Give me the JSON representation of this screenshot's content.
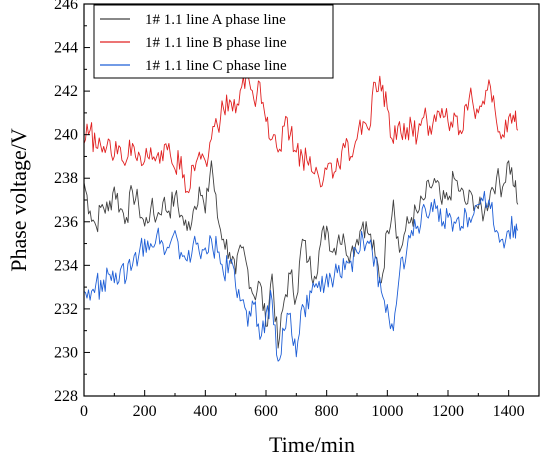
{
  "chart_data": {
    "type": "line",
    "title": "",
    "xlabel": "Time/min",
    "ylabel": "Phase voltage/V",
    "xlim": [
      0,
      1500
    ],
    "ylim": [
      228,
      246
    ],
    "xticks": [
      0,
      200,
      400,
      600,
      800,
      1000,
      1200,
      1400
    ],
    "yticks": [
      228,
      230,
      232,
      234,
      236,
      238,
      240,
      242,
      244,
      246
    ],
    "grid": false,
    "legend_position": "top-left",
    "series": [
      {
        "name": "1# 1.1 line A phase line",
        "color": "#404040",
        "x": [
          0,
          20,
          40,
          60,
          80,
          100,
          120,
          140,
          160,
          180,
          200,
          220,
          240,
          260,
          280,
          300,
          320,
          340,
          360,
          380,
          400,
          420,
          440,
          460,
          480,
          500,
          520,
          540,
          560,
          580,
          600,
          620,
          640,
          660,
          680,
          700,
          720,
          740,
          760,
          780,
          800,
          820,
          840,
          860,
          880,
          900,
          920,
          940,
          960,
          980,
          1000,
          1020,
          1040,
          1060,
          1080,
          1100,
          1120,
          1140,
          1160,
          1180,
          1200,
          1220,
          1240,
          1260,
          1280,
          1300,
          1320,
          1340,
          1360,
          1380,
          1400,
          1420,
          1430
        ],
        "values": [
          237.8,
          236.5,
          235.8,
          236.8,
          236.5,
          237.6,
          236.6,
          236.2,
          237.4,
          236.8,
          235.8,
          236.6,
          236.2,
          236.9,
          236.5,
          237.2,
          236.3,
          235.6,
          236.5,
          237.6,
          236.4,
          238.8,
          236.2,
          235.2,
          234.6,
          233.6,
          234.8,
          233.8,
          232.6,
          233.2,
          231.2,
          233.6,
          230.2,
          232.4,
          233.6,
          232.5,
          235.2,
          234.2,
          233.5,
          235.0,
          235.8,
          234.6,
          235.4,
          235.0,
          234.6,
          235.2,
          236.0,
          235.4,
          234.4,
          233.2,
          235.6,
          237.0,
          234.6,
          235.6,
          236.2,
          236.4,
          237.0,
          237.6,
          237.8,
          236.8,
          237.0,
          238.0,
          237.4,
          236.8,
          237.2,
          236.6,
          236.4,
          237.4,
          238.0,
          237.6,
          238.8,
          237.6,
          236.8
        ]
      },
      {
        "name": "1# 1.1 line B phase line",
        "color": "#e02020",
        "x": [
          0,
          20,
          40,
          60,
          80,
          100,
          120,
          140,
          160,
          180,
          200,
          220,
          240,
          260,
          280,
          300,
          320,
          340,
          360,
          380,
          400,
          420,
          440,
          460,
          480,
          500,
          520,
          540,
          560,
          580,
          600,
          620,
          640,
          660,
          680,
          700,
          720,
          740,
          760,
          780,
          800,
          820,
          840,
          860,
          880,
          900,
          920,
          940,
          960,
          980,
          1000,
          1020,
          1040,
          1060,
          1080,
          1100,
          1120,
          1140,
          1160,
          1180,
          1200,
          1220,
          1240,
          1260,
          1280,
          1300,
          1320,
          1340,
          1360,
          1380,
          1400,
          1420,
          1430
        ],
        "values": [
          239.6,
          240.2,
          239.4,
          239.2,
          239.8,
          239.0,
          239.4,
          238.8,
          239.6,
          239.2,
          238.8,
          239.4,
          239.0,
          238.8,
          239.6,
          238.4,
          239.0,
          237.4,
          238.6,
          239.2,
          238.8,
          239.8,
          240.4,
          241.2,
          241.6,
          241.0,
          242.2,
          242.8,
          241.6,
          242.4,
          240.6,
          239.8,
          239.2,
          240.4,
          240.0,
          239.2,
          239.0,
          238.6,
          238.2,
          237.6,
          238.4,
          238.0,
          238.6,
          239.4,
          239.0,
          239.8,
          240.6,
          240.2,
          242.4,
          242.0,
          241.2,
          239.6,
          240.6,
          239.8,
          240.4,
          240.0,
          240.8,
          240.4,
          240.6,
          241.2,
          240.6,
          241.0,
          240.2,
          241.4,
          241.6,
          241.0,
          241.4,
          242.2,
          240.6,
          240.0,
          240.8,
          240.6,
          240.2
        ]
      },
      {
        "name": "1# 1.1 line C phase line",
        "color": "#1f5fd6",
        "x": [
          0,
          20,
          40,
          60,
          80,
          100,
          120,
          140,
          160,
          180,
          200,
          220,
          240,
          260,
          280,
          300,
          320,
          340,
          360,
          380,
          400,
          420,
          440,
          460,
          480,
          500,
          520,
          540,
          560,
          580,
          600,
          620,
          640,
          660,
          680,
          700,
          720,
          740,
          760,
          780,
          800,
          820,
          840,
          860,
          880,
          900,
          920,
          940,
          960,
          980,
          1000,
          1020,
          1040,
          1060,
          1080,
          1100,
          1120,
          1140,
          1160,
          1180,
          1200,
          1220,
          1240,
          1260,
          1280,
          1300,
          1320,
          1340,
          1360,
          1380,
          1400,
          1420,
          1430
        ],
        "values": [
          232.8,
          232.4,
          233.2,
          232.8,
          233.6,
          233.2,
          233.8,
          233.4,
          234.0,
          234.4,
          235.2,
          235.0,
          235.4,
          235.0,
          234.8,
          235.6,
          234.6,
          234.2,
          235.0,
          234.6,
          234.8,
          235.2,
          234.6,
          233.6,
          234.2,
          233.0,
          232.4,
          231.2,
          232.2,
          230.6,
          231.8,
          232.4,
          229.6,
          231.0,
          231.8,
          229.8,
          232.2,
          232.0,
          233.0,
          232.8,
          233.6,
          233.0,
          234.0,
          233.8,
          234.2,
          234.6,
          235.2,
          235.0,
          234.4,
          232.8,
          232.2,
          231.0,
          233.6,
          234.2,
          235.6,
          235.8,
          236.8,
          236.4,
          236.6,
          235.8,
          236.2,
          236.0,
          235.6,
          236.4,
          236.2,
          236.8,
          237.4,
          236.6,
          235.6,
          235.2,
          235.6,
          235.8,
          235.6
        ]
      }
    ]
  }
}
